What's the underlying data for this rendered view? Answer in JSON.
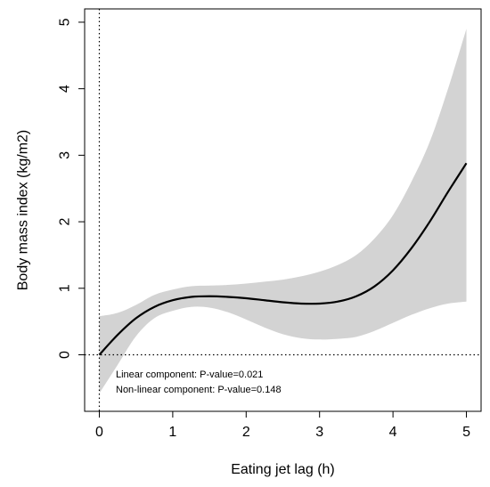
{
  "chart_data": {
    "type": "line",
    "title": "",
    "xlabel": "Eating jet lag (h)",
    "ylabel": "Body mass index (kg/m2)",
    "xlim": [
      -0.2,
      5.2
    ],
    "ylim": [
      -0.85,
      5.2
    ],
    "x_ticks": [
      0,
      1,
      2,
      3,
      4,
      5
    ],
    "y_ticks": [
      0,
      1,
      2,
      3,
      4,
      5
    ],
    "reference_lines": {
      "vertical_x": 0,
      "horizontal_y": 0,
      "style": "dotted"
    },
    "x": [
      0,
      0.25,
      0.5,
      0.75,
      1,
      1.25,
      1.5,
      1.75,
      2,
      2.25,
      2.5,
      2.75,
      3,
      3.25,
      3.5,
      3.75,
      4,
      4.25,
      4.5,
      4.75,
      5
    ],
    "series": [
      {
        "values": [
          0.0,
          0.3,
          0.55,
          0.72,
          0.82,
          0.87,
          0.88,
          0.87,
          0.85,
          0.82,
          0.79,
          0.77,
          0.77,
          0.8,
          0.88,
          1.03,
          1.27,
          1.6,
          2.0,
          2.45,
          2.88
        ]
      }
    ],
    "confidence_band": {
      "upper": [
        0.58,
        0.63,
        0.75,
        0.9,
        0.98,
        1.03,
        1.04,
        1.05,
        1.07,
        1.1,
        1.13,
        1.18,
        1.25,
        1.35,
        1.5,
        1.75,
        2.1,
        2.6,
        3.2,
        4.0,
        4.9
      ],
      "lower": [
        -0.58,
        -0.15,
        0.28,
        0.55,
        0.66,
        0.72,
        0.71,
        0.64,
        0.53,
        0.41,
        0.31,
        0.25,
        0.23,
        0.24,
        0.27,
        0.36,
        0.48,
        0.6,
        0.7,
        0.77,
        0.8
      ]
    },
    "annotations": [
      "Linear component: P-value=0.021",
      "Non-linear component: P-value=0.148"
    ],
    "colors": {
      "line": "#000000",
      "band": "#d3d3d3",
      "axis": "#000000"
    },
    "grid": false
  }
}
